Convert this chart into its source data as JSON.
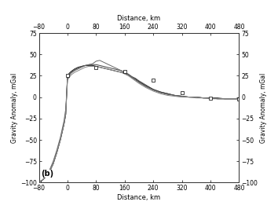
{
  "title_top": "Distance, km",
  "xlabel": "Distance, km",
  "ylabel_left": "Gravity Anomaly, mGal",
  "ylabel_right": "Gravity Anomaly, mGal",
  "xlim": [
    -80,
    480
  ],
  "ylim": [
    -100,
    75
  ],
  "xticks": [
    -80,
    0,
    80,
    160,
    240,
    320,
    400,
    480
  ],
  "yticks": [
    -100,
    -75,
    -50,
    -25,
    0,
    25,
    50,
    75
  ],
  "label_b": "(b)",
  "background_color": "#ffffff",
  "obs_x": [
    -80,
    0,
    80,
    160,
    240,
    320,
    400,
    480
  ],
  "obs_y": [
    -100,
    25,
    35,
    30,
    20,
    5,
    -1,
    -2
  ],
  "curve1_x": [
    -80,
    -70,
    -60,
    -50,
    -40,
    -30,
    -20,
    -10,
    -5,
    0,
    5,
    10,
    20,
    30,
    40,
    50,
    60,
    70,
    80,
    90,
    100,
    110,
    120,
    130,
    140,
    150,
    160,
    170,
    180,
    190,
    200,
    220,
    240,
    260,
    280,
    300,
    320,
    340,
    360,
    380,
    400,
    420,
    440,
    460,
    480
  ],
  "curve1_y": [
    -100,
    -97,
    -93,
    -87,
    -78,
    -65,
    -50,
    -32,
    -20,
    25,
    28,
    30,
    33,
    35,
    36,
    37,
    37,
    37,
    36,
    35,
    34,
    33,
    32,
    31,
    30,
    29,
    28,
    26,
    23,
    21,
    18,
    13,
    9,
    6,
    4,
    2,
    1,
    0,
    0,
    -1,
    -1,
    -1,
    -2,
    -2,
    -2
  ],
  "curve2_x": [
    -80,
    -70,
    -60,
    -50,
    -40,
    -30,
    -20,
    -10,
    -5,
    0,
    5,
    10,
    20,
    30,
    40,
    50,
    60,
    70,
    80,
    90,
    100,
    110,
    120,
    130,
    140,
    150,
    160,
    170,
    180,
    190,
    200,
    220,
    240,
    260,
    280,
    300,
    320,
    340,
    360,
    380,
    400,
    420,
    440,
    460,
    480
  ],
  "curve2_y": [
    -100,
    -97,
    -93,
    -87,
    -78,
    -65,
    -50,
    -32,
    -20,
    25,
    27,
    29,
    32,
    34,
    36,
    37,
    38,
    38,
    38,
    37,
    36,
    35,
    34,
    33,
    32,
    31,
    29,
    27,
    24,
    22,
    19,
    14,
    9,
    6,
    4,
    2,
    1,
    0,
    0,
    -1,
    -1,
    -2,
    -2,
    -2,
    -2
  ],
  "curve3_x": [
    -80,
    -70,
    -60,
    -50,
    -40,
    -30,
    -20,
    -10,
    -5,
    0,
    5,
    10,
    20,
    30,
    40,
    50,
    60,
    70,
    80,
    90,
    100,
    110,
    120,
    130,
    140,
    150,
    160,
    170,
    180,
    190,
    200,
    220,
    240,
    260,
    280,
    300,
    320,
    340,
    360,
    380,
    400,
    420,
    440,
    460,
    480
  ],
  "curve3_y": [
    -100,
    -97,
    -92,
    -85,
    -75,
    -62,
    -47,
    -28,
    -14,
    22,
    25,
    28,
    31,
    33,
    35,
    37,
    38,
    39,
    42,
    43,
    41,
    39,
    37,
    35,
    33,
    31,
    29,
    26,
    23,
    20,
    17,
    12,
    8,
    5,
    3,
    2,
    1,
    0,
    0,
    -1,
    -1,
    -2,
    -2,
    -2,
    -2
  ],
  "curve4_x": [
    -80,
    -70,
    -60,
    -50,
    -40,
    -30,
    -20,
    -10,
    -5,
    0,
    5,
    10,
    20,
    30,
    40,
    50,
    60,
    70,
    80,
    90,
    100,
    110,
    120,
    130,
    140,
    150,
    160,
    170,
    180,
    190,
    200,
    220,
    240,
    260,
    280,
    300,
    320,
    340,
    360,
    380,
    400,
    420,
    440,
    460,
    480
  ],
  "curve4_y": [
    -100,
    -97,
    -93,
    -87,
    -78,
    -65,
    -50,
    -32,
    -20,
    20,
    23,
    26,
    29,
    31,
    33,
    35,
    36,
    36,
    36,
    35,
    34,
    33,
    32,
    31,
    30,
    29,
    27,
    25,
    22,
    19,
    16,
    11,
    7,
    4,
    2,
    1,
    0,
    0,
    -1,
    -1,
    -2,
    -2,
    -2,
    -2,
    -2
  ]
}
